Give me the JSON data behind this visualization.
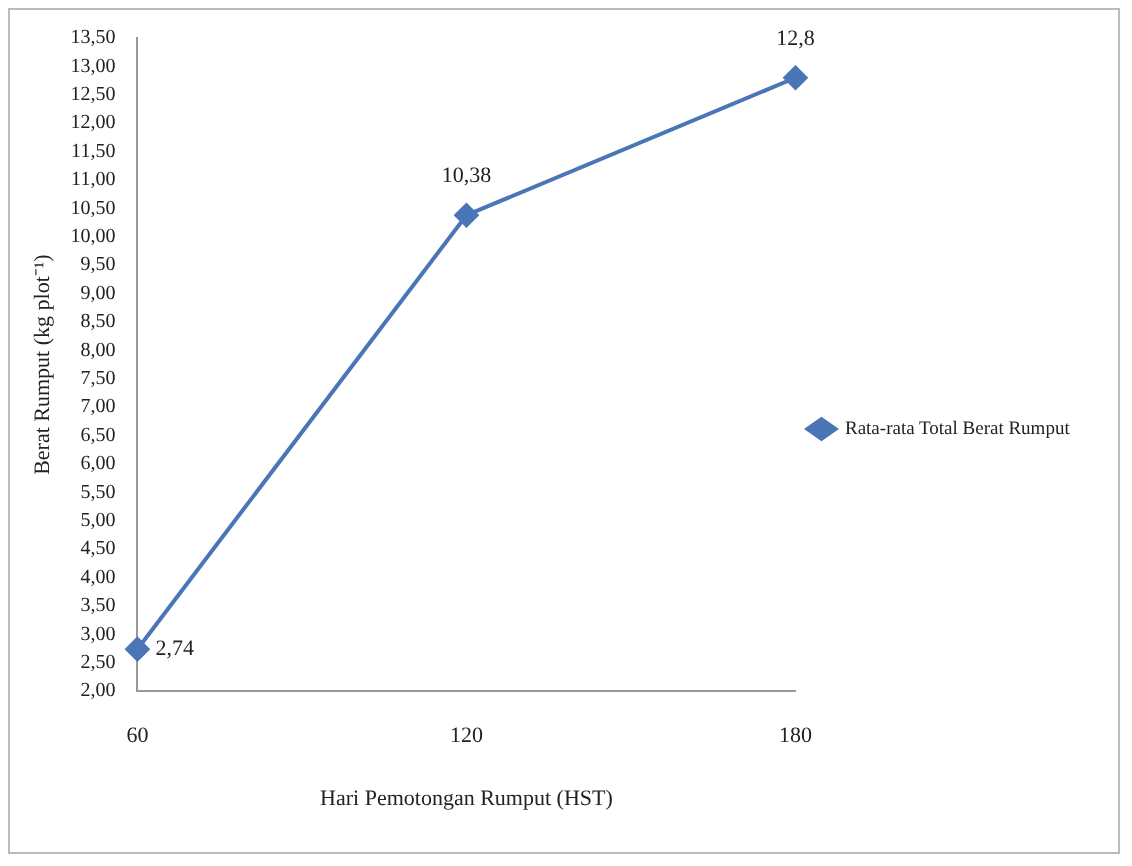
{
  "chart_data": {
    "type": "line",
    "xlabel": "Hari Pemotongan Rumput (HST)",
    "ylabel": "Berat Rumput (kg plot⁻¹)",
    "categories": [
      "60",
      "120",
      "180"
    ],
    "series": [
      {
        "name": "Rata-rata Total Berat Rumput",
        "color": "#4a76b8",
        "values": [
          2.74,
          10.38,
          12.8
        ],
        "value_labels": [
          "2,74",
          "10,38",
          "12,8"
        ]
      }
    ],
    "ylim": [
      2,
      13.5
    ],
    "yticks": [
      {
        "value": 2,
        "label": "2,00"
      },
      {
        "value": 2.5,
        "label": "2,50"
      },
      {
        "value": 3,
        "label": "3,00"
      },
      {
        "value": 3.5,
        "label": "3,50"
      },
      {
        "value": 4,
        "label": "4,00"
      },
      {
        "value": 4.5,
        "label": "4,50"
      },
      {
        "value": 5,
        "label": "5,00"
      },
      {
        "value": 5.5,
        "label": "5,50"
      },
      {
        "value": 6,
        "label": "6,00"
      },
      {
        "value": 6.5,
        "label": "6,50"
      },
      {
        "value": 7,
        "label": "7,00"
      },
      {
        "value": 7.5,
        "label": "7,50"
      },
      {
        "value": 8,
        "label": "8,00"
      },
      {
        "value": 8.5,
        "label": "8,50"
      },
      {
        "value": 9,
        "label": "9,00"
      },
      {
        "value": 9.5,
        "label": "9,50"
      },
      {
        "value": 10,
        "label": "10,00"
      },
      {
        "value": 10.5,
        "label": "10,50"
      },
      {
        "value": 11,
        "label": "11,00"
      },
      {
        "value": 11.5,
        "label": "11,50"
      },
      {
        "value": 12,
        "label": "12,00"
      },
      {
        "value": 12.5,
        "label": "12,50"
      },
      {
        "value": 13,
        "label": "13,00"
      },
      {
        "value": 13.5,
        "label": "13,50"
      }
    ],
    "grid": false,
    "legend": "right",
    "marker": "diamond",
    "line_style": "solid"
  }
}
